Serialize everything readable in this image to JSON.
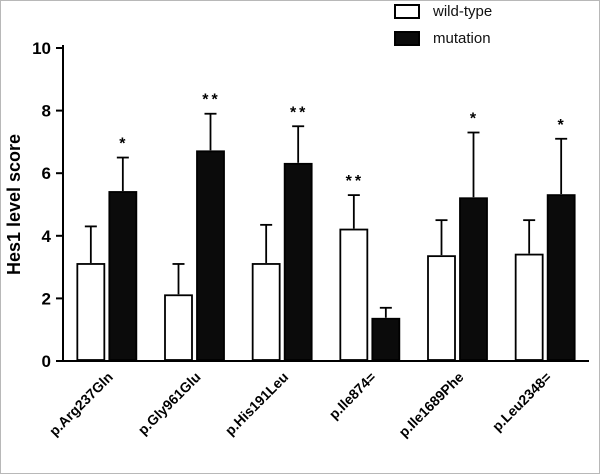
{
  "chart_data": {
    "type": "bar",
    "title": "",
    "xlabel": "",
    "ylabel": "Hes1  level score",
    "ylim": [
      0,
      10
    ],
    "yticks": [
      0,
      2,
      4,
      6,
      8,
      10
    ],
    "grid": false,
    "legend_position": "top-right",
    "categories": [
      "p.Arg237Gln",
      "p.Gly961Glu",
      "p.His191Leu",
      "p.Ile874=",
      "p.Ile1689Phe",
      "p.Leu2348="
    ],
    "series": [
      {
        "name": "wild-type",
        "fill": "#ffffff",
        "values": [
          3.1,
          2.1,
          3.1,
          4.2,
          3.35,
          3.4
        ],
        "errors": [
          1.2,
          1.0,
          1.25,
          1.1,
          1.15,
          1.1
        ]
      },
      {
        "name": "mutation",
        "fill": "#0b0b0b",
        "values": [
          5.4,
          6.7,
          6.3,
          1.35,
          5.2,
          5.3
        ],
        "errors": [
          1.1,
          1.2,
          1.2,
          0.35,
          2.1,
          1.8
        ]
      }
    ],
    "significance": [
      {
        "category": 0,
        "series": 1,
        "marker": "*"
      },
      {
        "category": 1,
        "series": 1,
        "marker": "**"
      },
      {
        "category": 2,
        "series": 1,
        "marker": "**"
      },
      {
        "category": 3,
        "series": 0,
        "marker": "**"
      },
      {
        "category": 4,
        "series": 1,
        "marker": "*"
      },
      {
        "category": 5,
        "series": 1,
        "marker": "*"
      }
    ],
    "colors": {
      "axis": "#000000",
      "bar_outline": "#000000"
    }
  }
}
